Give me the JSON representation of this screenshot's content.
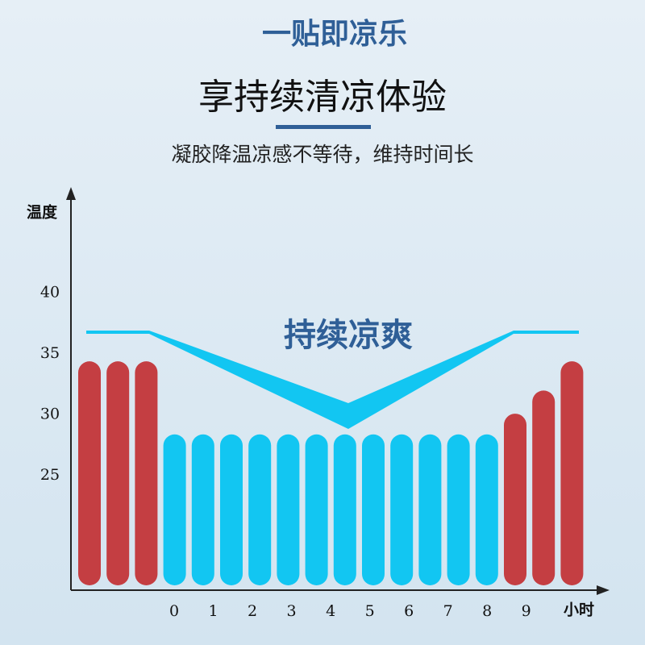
{
  "chart_data": {
    "type": "bar",
    "title": "一贴即凉乐",
    "subtitle": "享持续清凉体验",
    "description": "凝胶降温凉感不等待，维持时间长",
    "annotation": "持续凉爽",
    "y_label": "温度",
    "x_label": "小时",
    "categories": [
      null,
      null,
      null,
      null,
      null,
      null,
      null,
      null,
      null,
      null,
      null,
      null,
      null,
      null,
      null,
      null,
      null,
      null
    ],
    "values": [
      34.4,
      34.4,
      34.4,
      28.4,
      28.4,
      28.4,
      28.4,
      28.4,
      28.4,
      28.4,
      28.4,
      28.4,
      28.4,
      28.4,
      28.4,
      30.1,
      32,
      34.4
    ],
    "colors": [
      "#c43e42",
      "#c43e42",
      "#c43e42",
      "#12c6f2",
      "#12c6f2",
      "#12c6f2",
      "#12c6f2",
      "#12c6f2",
      "#12c6f2",
      "#12c6f2",
      "#12c6f2",
      "#12c6f2",
      "#12c6f2",
      "#12c6f2",
      "#12c6f2",
      "#c43e42",
      "#c43e42",
      "#c43e42"
    ],
    "ylim": [
      16,
      48
    ],
    "yticks": [
      25,
      30,
      35,
      40
    ],
    "xlim": [
      -2.64,
      10.8
    ],
    "xticks": [
      0,
      1,
      2,
      3,
      4,
      5,
      6,
      7,
      8,
      9
    ]
  }
}
